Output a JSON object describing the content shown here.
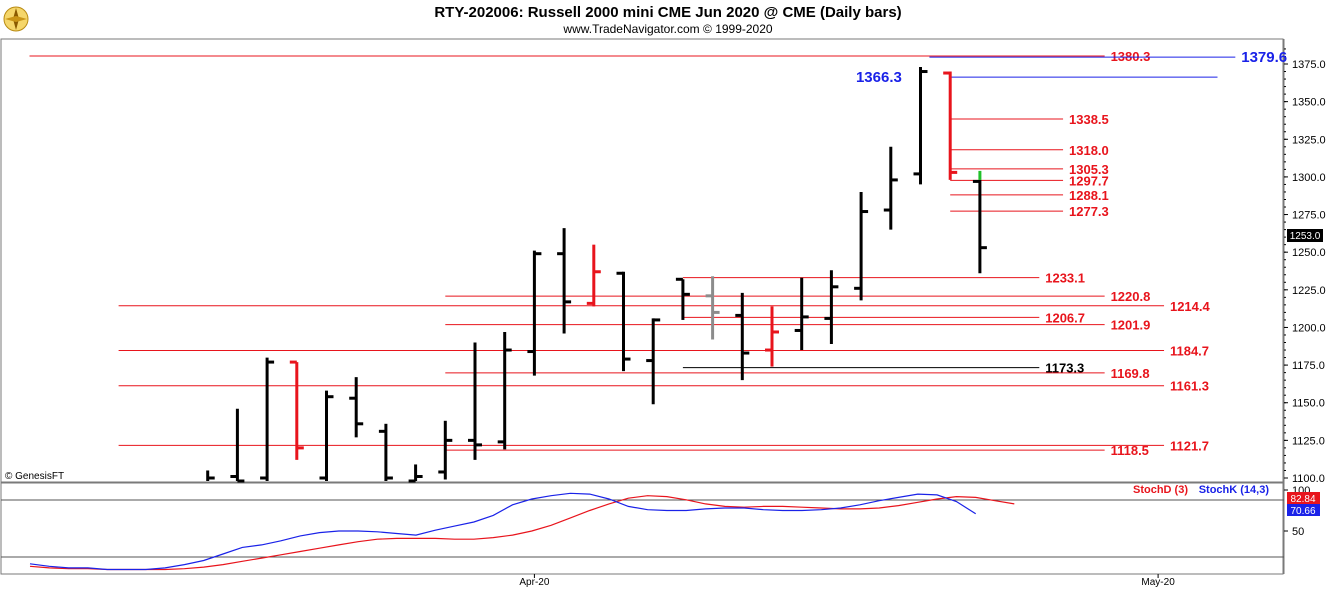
{
  "logo_icon": "gold-compass-rose-icon",
  "chart_data": {
    "type": "ohlc",
    "title": "RTY-202006:  Russell 2000 mini CME Jun 2020 @ CME  (Daily bars)",
    "subtitle": "www.TradeNavigator.com © 1999-2020",
    "watermark": "© GenesisFT",
    "price_axis": {
      "range": [
        1100,
        1390
      ],
      "ticks": [
        "1375.0",
        "1350.0",
        "1325.0",
        "1300.0",
        "1275.0",
        "1250.0",
        "1225.0",
        "1200.0",
        "1175.0",
        "1150.0",
        "1125.0",
        "1100.0"
      ]
    },
    "last_price": "1253.0",
    "x_labels": [
      {
        "label": "Apr-20",
        "bar": 11
      },
      {
        "label": "May-20",
        "bar": 32
      }
    ],
    "bars": [
      {
        "h": 1105,
        "l": 1090,
        "o": 1097,
        "c": 1100,
        "color": "black"
      },
      {
        "h": 1146,
        "l": 1093,
        "o": 1101,
        "c": 1098,
        "color": "black"
      },
      {
        "h": 1180,
        "l": 1097,
        "o": 1100,
        "c": 1177,
        "color": "black"
      },
      {
        "h": 1177,
        "l": 1112,
        "o": 1177,
        "c": 1120,
        "color": "red"
      },
      {
        "h": 1158,
        "l": 1096,
        "o": 1100,
        "c": 1154,
        "color": "black"
      },
      {
        "h": 1167,
        "l": 1127,
        "o": 1153,
        "c": 1136,
        "color": "black"
      },
      {
        "h": 1136,
        "l": 1097,
        "o": 1131,
        "c": 1100,
        "color": "black"
      },
      {
        "h": 1109,
        "l": 1095,
        "o": 1098,
        "c": 1101,
        "color": "black"
      },
      {
        "h": 1138,
        "l": 1099,
        "o": 1104,
        "c": 1125,
        "color": "black"
      },
      {
        "h": 1190,
        "l": 1112,
        "o": 1125,
        "c": 1122,
        "color": "black"
      },
      {
        "h": 1197,
        "l": 1119,
        "o": 1124,
        "c": 1185,
        "color": "black"
      },
      {
        "h": 1251,
        "l": 1168,
        "o": 1184,
        "c": 1249,
        "color": "black"
      },
      {
        "h": 1266,
        "l": 1196,
        "o": 1249,
        "c": 1217,
        "color": "black"
      },
      {
        "h": 1255,
        "l": 1214,
        "o": 1216,
        "c": 1237,
        "color": "red"
      },
      {
        "h": 1237,
        "l": 1171,
        "o": 1236,
        "c": 1179,
        "color": "black"
      },
      {
        "h": 1206,
        "l": 1149,
        "o": 1178,
        "c": 1205,
        "color": "black"
      },
      {
        "h": 1232,
        "l": 1205,
        "o": 1232,
        "c": 1222,
        "color": "black"
      },
      {
        "h": 1234,
        "l": 1192,
        "o": 1221,
        "c": 1210,
        "color": "gray"
      },
      {
        "h": 1223,
        "l": 1165,
        "o": 1208,
        "c": 1183,
        "color": "black"
      },
      {
        "h": 1214,
        "l": 1174,
        "o": 1185,
        "c": 1197,
        "color": "red"
      },
      {
        "h": 1233,
        "l": 1185,
        "o": 1198,
        "c": 1207,
        "color": "black"
      },
      {
        "h": 1238,
        "l": 1189,
        "o": 1206,
        "c": 1227,
        "color": "black"
      },
      {
        "h": 1290,
        "l": 1218,
        "o": 1226,
        "c": 1277,
        "color": "black"
      },
      {
        "h": 1320,
        "l": 1265,
        "o": 1278,
        "c": 1298,
        "color": "black"
      },
      {
        "h": 1373,
        "l": 1295,
        "o": 1302,
        "c": 1370,
        "color": "black"
      },
      {
        "h": 1370,
        "l": 1298,
        "o": 1369,
        "c": 1303,
        "color": "red"
      },
      {
        "h": 1298,
        "l": 1236,
        "o": 1297,
        "c": 1253,
        "color": "black",
        "tip": {
          "h": 1304,
          "color": "green"
        }
      }
    ],
    "first_bar_slot": 6,
    "levels": [
      {
        "value": 1380.3,
        "label": "1380.3",
        "color": "#e8141c",
        "from": 0,
        "to": 36.2,
        "label_x": 36.4
      },
      {
        "value": 1379.6,
        "label": "1379.6",
        "color": "#1a22e8",
        "from": 30.3,
        "to": 40.6,
        "label_x": 40.8,
        "big": true
      },
      {
        "value": 1366.3,
        "label": "1366.3",
        "color": "#1a22e8",
        "from": 31.0,
        "to": 40.0,
        "label_x": 28.6,
        "big": true,
        "label_left": true
      },
      {
        "value": 1338.5,
        "label": "1338.5",
        "color": "#e8141c",
        "from": 31.0,
        "to": 34.8,
        "label_x": 35.0
      },
      {
        "value": 1318.0,
        "label": "1318.0",
        "color": "#e8141c",
        "from": 31.0,
        "to": 34.8,
        "label_x": 35.0
      },
      {
        "value": 1305.3,
        "label": "1305.3",
        "color": "#e8141c",
        "from": 31.0,
        "to": 34.8,
        "label_x": 35.0
      },
      {
        "value": 1297.7,
        "label": "1297.7",
        "color": "#e8141c",
        "from": 31.0,
        "to": 34.8,
        "label_x": 35.0
      },
      {
        "value": 1288.1,
        "label": "1288.1",
        "color": "#e8141c",
        "from": 31.0,
        "to": 34.8,
        "label_x": 35.0
      },
      {
        "value": 1277.3,
        "label": "1277.3",
        "color": "#e8141c",
        "from": 31.0,
        "to": 34.8,
        "label_x": 35.0
      },
      {
        "value": 1233.1,
        "label": "1233.1",
        "color": "#e8141c",
        "from": 22.0,
        "to": 34.0,
        "label_x": 34.2
      },
      {
        "value": 1220.8,
        "label": "1220.8",
        "color": "#e8141c",
        "from": 14.0,
        "to": 36.2,
        "label_x": 36.4
      },
      {
        "value": 1214.4,
        "label": "1214.4",
        "color": "#e8141c",
        "from": 3.0,
        "to": 38.2,
        "label_x": 38.4
      },
      {
        "value": 1206.7,
        "label": "1206.7",
        "color": "#e8141c",
        "from": 22.0,
        "to": 34.0,
        "label_x": 34.2
      },
      {
        "value": 1201.9,
        "label": "1201.9",
        "color": "#e8141c",
        "from": 14.0,
        "to": 36.2,
        "label_x": 36.4
      },
      {
        "value": 1184.7,
        "label": "1184.7",
        "color": "#e8141c",
        "from": 3.0,
        "to": 38.2,
        "label_x": 38.4
      },
      {
        "value": 1173.3,
        "label": "1173.3",
        "color": "#000000",
        "from": 22.0,
        "to": 34.0,
        "label_x": 34.2
      },
      {
        "value": 1169.8,
        "label": "1169.8",
        "color": "#e8141c",
        "from": 14.0,
        "to": 36.2,
        "label_x": 36.4
      },
      {
        "value": 1161.3,
        "label": "1161.3",
        "color": "#e8141c",
        "from": 3.0,
        "to": 38.2,
        "label_x": 38.4
      },
      {
        "value": 1121.7,
        "label": "1121.7",
        "color": "#e8141c",
        "from": 3.0,
        "to": 38.2,
        "label_x": 38.4
      },
      {
        "value": 1118.5,
        "label": "1118.5",
        "color": "#e8141c",
        "from": 14.0,
        "to": 36.2,
        "label_x": 36.4
      }
    ],
    "stochastic": {
      "range": [
        0,
        100
      ],
      "ticks": [
        "100",
        "50"
      ],
      "stoch_d": {
        "name": "StochD (3)",
        "color": "#e8141c",
        "last": "82.84",
        "values": [
          7,
          5,
          4,
          4,
          3,
          3,
          3,
          3,
          4,
          6,
          9,
          13,
          17,
          21,
          25,
          29,
          33,
          37,
          40,
          41,
          41,
          41,
          40,
          40,
          42,
          45,
          50,
          57,
          66,
          75,
          83,
          90,
          93,
          92,
          88,
          83,
          80,
          79,
          80,
          80,
          79,
          78,
          77,
          77,
          78,
          81,
          85,
          89,
          92,
          91,
          87,
          83
        ]
      },
      "stoch_k": {
        "name": "StochK (14,3)",
        "color": "#1a22e8",
        "last": "70.66",
        "values": [
          10,
          7,
          5,
          5,
          3,
          3,
          3,
          5,
          9,
          14,
          22,
          30,
          33,
          38,
          44,
          48,
          50,
          50,
          49,
          47,
          45,
          51,
          56,
          61,
          69,
          82,
          89,
          93,
          96,
          95,
          89,
          80,
          76,
          75,
          75,
          77,
          78,
          78,
          76,
          75,
          75,
          76,
          78,
          82,
          87,
          91,
          95,
          94,
          86,
          71
        ]
      }
    }
  }
}
